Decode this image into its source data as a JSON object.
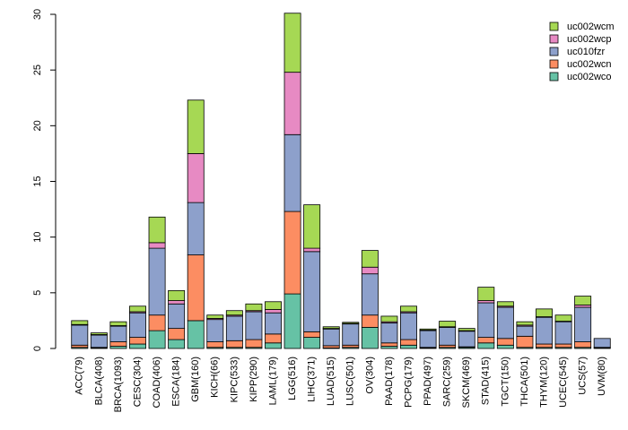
{
  "chart_data": {
    "type": "bar",
    "stacked": true,
    "title": "",
    "xlabel": "",
    "ylabel": "",
    "ylim": [
      0,
      30
    ],
    "yticks": [
      0,
      5,
      10,
      15,
      20,
      25,
      30
    ],
    "legend_position": "top-right",
    "categories": [
      "ACC(79)",
      "BLCA(408)",
      "BRCA(1093)",
      "CESC(304)",
      "COAD(406)",
      "ESCA(184)",
      "GBM(160)",
      "KICH(66)",
      "KIPC(533)",
      "KIPP(290)",
      "LAML(179)",
      "LGG(516)",
      "LIHC(371)",
      "LUAD(515)",
      "LUSC(501)",
      "OV(304)",
      "PAAD(178)",
      "PCPG(179)",
      "PPAD(497)",
      "SARC(259)",
      "SKCM(469)",
      "STAD(415)",
      "TGCT(150)",
      "THCA(501)",
      "THYM(120)",
      "UCEC(545)",
      "UCS(57)",
      "UVM(80)"
    ],
    "series": [
      {
        "name": "uc002wco",
        "color": "#66c2a5",
        "values": [
          0.1,
          0.05,
          0.2,
          0.4,
          1.6,
          0.8,
          2.5,
          0.1,
          0.1,
          0.1,
          0.5,
          4.9,
          1.0,
          0.05,
          0.1,
          1.9,
          0.2,
          0.3,
          0.05,
          0.1,
          0.1,
          0.5,
          0.3,
          0.1,
          0.1,
          0.1,
          0.1,
          0.05
        ]
      },
      {
        "name": "uc002wcn",
        "color": "#fc8d62",
        "values": [
          0.2,
          0.05,
          0.4,
          0.6,
          1.4,
          1.0,
          5.9,
          0.5,
          0.6,
          0.7,
          0.8,
          7.4,
          0.5,
          0.2,
          0.2,
          1.1,
          0.3,
          0.5,
          0.05,
          0.2,
          0.05,
          0.5,
          0.6,
          1.0,
          0.3,
          0.3,
          0.5,
          0.05
        ]
      },
      {
        "name": "uc010fzr",
        "color": "#8da0cb",
        "values": [
          1.8,
          1.1,
          1.4,
          2.2,
          6.0,
          2.2,
          4.7,
          2.0,
          2.2,
          2.5,
          1.9,
          6.9,
          7.2,
          1.5,
          1.9,
          3.7,
          1.8,
          2.4,
          1.5,
          1.6,
          1.4,
          3.1,
          2.8,
          0.9,
          2.4,
          2.0,
          3.1,
          0.8
        ]
      },
      {
        "name": "uc002wcp",
        "color": "#e78ac3",
        "values": [
          0.05,
          0.05,
          0.05,
          0.1,
          0.5,
          0.3,
          4.4,
          0.1,
          0.1,
          0.1,
          0.3,
          5.6,
          0.3,
          0.05,
          0.05,
          0.6,
          0.1,
          0.1,
          0.05,
          0.05,
          0.05,
          0.2,
          0.1,
          0.1,
          0.05,
          0.05,
          0.2,
          0.0
        ]
      },
      {
        "name": "uc002wcm",
        "color": "#a6d854",
        "values": [
          0.35,
          0.15,
          0.35,
          0.5,
          2.3,
          0.9,
          4.8,
          0.3,
          0.4,
          0.6,
          0.7,
          5.3,
          3.9,
          0.15,
          0.1,
          1.5,
          0.5,
          0.5,
          0.1,
          0.5,
          0.2,
          1.2,
          0.4,
          0.3,
          0.7,
          0.55,
          0.8,
          0.0
        ]
      }
    ]
  }
}
